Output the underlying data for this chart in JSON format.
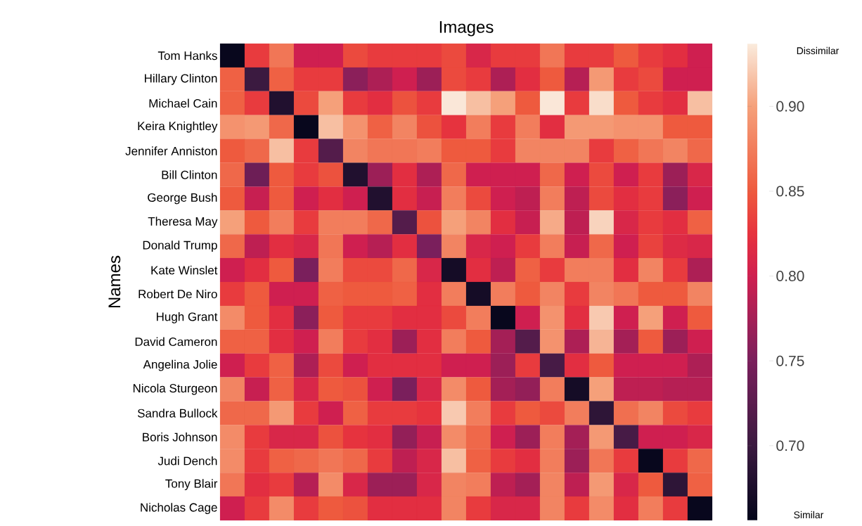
{
  "chart_data": {
    "type": "heatmap",
    "xlabel": "Images",
    "ylabel": "Names",
    "categories": [
      null,
      null,
      null,
      null,
      null,
      null,
      null,
      null,
      null,
      null,
      null,
      null,
      null,
      null,
      null,
      null,
      null,
      null,
      null,
      null
    ],
    "y_categories": [
      "Tom Hanks",
      "Hillary Clinton",
      "Michael Cain",
      "Keira Knightley",
      "Jennifer Anniston",
      "Bill Clinton",
      "George Bush",
      "Theresa May",
      "Donald Trump",
      "Kate Winslet",
      "Robert De Niro",
      "Hugh Grant",
      "David Cameron",
      "Angelina Jolie",
      "Nicola Sturgeon",
      "Sandra Bullock",
      "Boris Johnson",
      "Judi Dench",
      "Tony Blair",
      "Nicholas Cage"
    ],
    "cells": [
      [
        0.66,
        0.83,
        0.87,
        0.8,
        0.8,
        0.84,
        0.83,
        0.83,
        0.83,
        0.84,
        0.81,
        0.83,
        0.83,
        0.87,
        0.83,
        0.83,
        0.85,
        0.83,
        0.82,
        0.8
      ],
      [
        0.855,
        0.7,
        0.855,
        0.83,
        0.83,
        0.76,
        0.78,
        0.8,
        0.77,
        0.84,
        0.83,
        0.78,
        0.82,
        0.85,
        0.785,
        0.895,
        0.83,
        0.84,
        0.8,
        0.8
      ],
      [
        0.855,
        0.83,
        0.68,
        0.84,
        0.9,
        0.83,
        0.82,
        0.845,
        0.83,
        0.935,
        0.915,
        0.9,
        0.85,
        0.935,
        0.83,
        0.93,
        0.85,
        0.83,
        0.82,
        0.915
      ],
      [
        0.89,
        0.895,
        0.86,
        0.66,
        0.915,
        0.89,
        0.855,
        0.88,
        0.845,
        0.825,
        0.875,
        0.83,
        0.875,
        0.82,
        0.895,
        0.895,
        0.89,
        0.89,
        0.85,
        0.85
      ],
      [
        0.85,
        0.86,
        0.915,
        0.83,
        0.72,
        0.88,
        0.87,
        0.87,
        0.875,
        0.85,
        0.85,
        0.83,
        0.88,
        0.88,
        0.88,
        0.83,
        0.855,
        0.87,
        0.88,
        0.86
      ],
      [
        0.86,
        0.74,
        0.85,
        0.83,
        0.845,
        0.68,
        0.77,
        0.82,
        0.78,
        0.86,
        0.8,
        0.8,
        0.8,
        0.86,
        0.8,
        0.84,
        0.8,
        0.83,
        0.77,
        0.81
      ],
      [
        0.85,
        0.795,
        0.85,
        0.8,
        0.82,
        0.8,
        0.68,
        0.82,
        0.795,
        0.875,
        0.84,
        0.8,
        0.79,
        0.875,
        0.79,
        0.84,
        0.82,
        0.83,
        0.76,
        0.8
      ],
      [
        0.9,
        0.85,
        0.875,
        0.83,
        0.875,
        0.875,
        0.86,
        0.72,
        0.845,
        0.9,
        0.88,
        0.82,
        0.795,
        0.905,
        0.79,
        0.925,
        0.81,
        0.83,
        0.82,
        0.855
      ],
      [
        0.86,
        0.79,
        0.82,
        0.81,
        0.87,
        0.8,
        0.785,
        0.82,
        0.75,
        0.88,
        0.81,
        0.8,
        0.83,
        0.875,
        0.795,
        0.86,
        0.8,
        0.835,
        0.815,
        0.81
      ],
      [
        0.8,
        0.82,
        0.85,
        0.75,
        0.875,
        0.84,
        0.84,
        0.86,
        0.81,
        0.67,
        0.82,
        0.79,
        0.855,
        0.83,
        0.875,
        0.875,
        0.82,
        0.88,
        0.83,
        0.78
      ],
      [
        0.83,
        0.85,
        0.8,
        0.8,
        0.855,
        0.85,
        0.85,
        0.855,
        0.82,
        0.875,
        0.67,
        0.875,
        0.85,
        0.88,
        0.83,
        0.88,
        0.87,
        0.85,
        0.85,
        0.88
      ],
      [
        0.885,
        0.85,
        0.82,
        0.76,
        0.85,
        0.83,
        0.83,
        0.82,
        0.82,
        0.84,
        0.875,
        0.66,
        0.8,
        0.89,
        0.82,
        0.92,
        0.8,
        0.9,
        0.8,
        0.85
      ],
      [
        0.855,
        0.855,
        0.82,
        0.8,
        0.875,
        0.83,
        0.82,
        0.77,
        0.82,
        0.875,
        0.85,
        0.775,
        0.72,
        0.89,
        0.78,
        0.91,
        0.775,
        0.85,
        0.77,
        0.8
      ],
      [
        0.8,
        0.83,
        0.855,
        0.78,
        0.84,
        0.8,
        0.82,
        0.82,
        0.82,
        0.8,
        0.8,
        0.77,
        0.83,
        0.71,
        0.82,
        0.85,
        0.8,
        0.8,
        0.8,
        0.78
      ],
      [
        0.88,
        0.795,
        0.855,
        0.81,
        0.85,
        0.845,
        0.8,
        0.75,
        0.81,
        0.885,
        0.85,
        0.775,
        0.765,
        0.875,
        0.67,
        0.9,
        0.79,
        0.79,
        0.785,
        0.785
      ],
      [
        0.86,
        0.86,
        0.895,
        0.83,
        0.8,
        0.855,
        0.83,
        0.83,
        0.825,
        0.92,
        0.875,
        0.83,
        0.85,
        0.84,
        0.875,
        0.69,
        0.865,
        0.88,
        0.84,
        0.83
      ],
      [
        0.885,
        0.83,
        0.81,
        0.81,
        0.845,
        0.825,
        0.82,
        0.765,
        0.795,
        0.885,
        0.86,
        0.8,
        0.77,
        0.875,
        0.775,
        0.895,
        0.71,
        0.8,
        0.8,
        0.81
      ],
      [
        0.885,
        0.83,
        0.855,
        0.86,
        0.87,
        0.86,
        0.83,
        0.79,
        0.81,
        0.915,
        0.855,
        0.83,
        0.82,
        0.875,
        0.77,
        0.87,
        0.83,
        0.66,
        0.83,
        0.86
      ],
      [
        0.87,
        0.82,
        0.83,
        0.785,
        0.885,
        0.81,
        0.77,
        0.77,
        0.81,
        0.88,
        0.875,
        0.79,
        0.775,
        0.88,
        0.79,
        0.895,
        0.81,
        0.85,
        0.69,
        0.855
      ],
      [
        0.8,
        0.83,
        0.885,
        0.83,
        0.85,
        0.845,
        0.82,
        0.82,
        0.82,
        0.88,
        0.83,
        0.81,
        0.81,
        0.88,
        0.83,
        0.885,
        0.82,
        0.875,
        0.83,
        0.66
      ]
    ],
    "clim": [
      0.656,
      0.937
    ],
    "cticks": [
      {
        "value": 0.7,
        "label": "0.70"
      },
      {
        "value": 0.75,
        "label": "0.75"
      },
      {
        "value": 0.8,
        "label": "0.80"
      },
      {
        "value": 0.85,
        "label": "0.85"
      },
      {
        "value": 0.9,
        "label": "0.90"
      }
    ],
    "annotations": [
      "Dissimilar",
      "Similar"
    ]
  }
}
